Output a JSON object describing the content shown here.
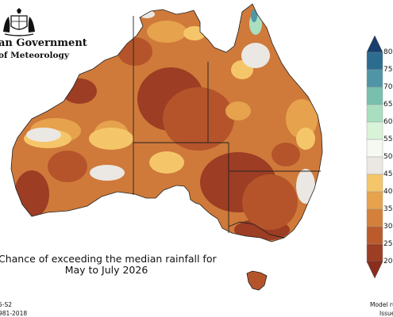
{
  "header": {
    "government": "an Government",
    "bureau": "of Meteorology"
  },
  "caption": {
    "line1": "Chance of exceeding the median rainfall for",
    "line2": "May to July 2026"
  },
  "footer": {
    "left_line1": "5-S2",
    "left_line2": "981-2018",
    "right_line1": "Model ru",
    "right_line2": "Issue"
  },
  "legend": {
    "ticks": [
      "80",
      "75",
      "70",
      "65",
      "60",
      "55",
      "50",
      "45",
      "40",
      "35",
      "30",
      "25",
      "20"
    ],
    "bins": [
      {
        "range": "75-80",
        "color": "#2b6c8f"
      },
      {
        "range": "70-75",
        "color": "#4f95a6"
      },
      {
        "range": "65-70",
        "color": "#79bfae"
      },
      {
        "range": "60-65",
        "color": "#a9dfc0"
      },
      {
        "range": "55-60",
        "color": "#d9f3d9"
      },
      {
        "range": "50-55",
        "color": "#f6f8f2"
      },
      {
        "range": "45-50",
        "color": "#ebe8e3"
      },
      {
        "range": "40-45",
        "color": "#f5c669"
      },
      {
        "range": "35-40",
        "color": "#e6a24c"
      },
      {
        "range": "30-35",
        "color": "#d4803a"
      },
      {
        "range": "25-30",
        "color": "#bb5b2c"
      },
      {
        "range": "20-25",
        "color": "#9c3d24"
      }
    ],
    "top_arrow_color": "#163f6e",
    "bottom_arrow_color": "#8a2d1c"
  },
  "map_colors": {
    "base": "#cf7a3a",
    "dark": "#b5542a",
    "darkest": "#9c3d24",
    "light": "#e6a24c",
    "yellow": "#f5c669",
    "near_median": "#ebe8e3",
    "green": "#a9dfc0",
    "teal": "#4f95a6",
    "border": "#222222"
  }
}
